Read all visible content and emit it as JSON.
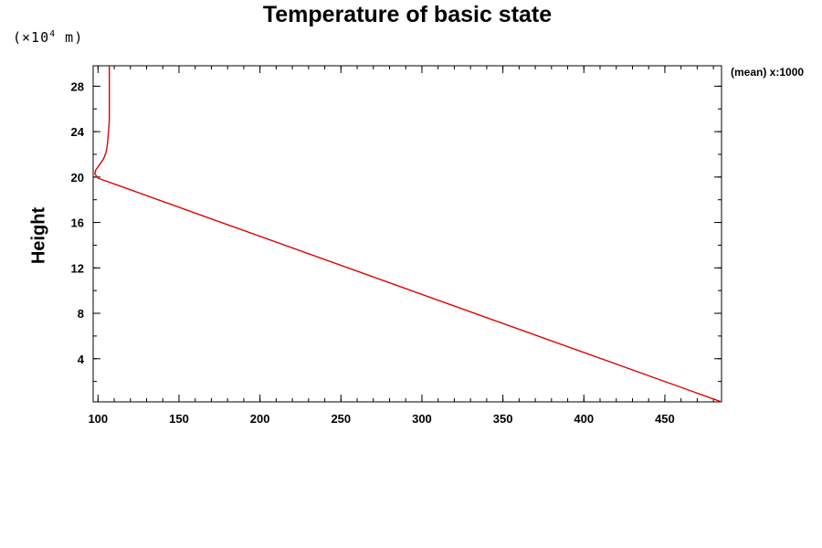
{
  "chart_data": {
    "type": "line",
    "title": "Temperature of basic state",
    "ylabel": "Height",
    "xlabel": "",
    "y_unit_prefix": "(×10",
    "y_unit_exponent": "4",
    "y_unit_suffix": " m)",
    "annotation": "(mean) x:1000",
    "xlim": [
      97,
      485
    ],
    "ylim": [
      0.2,
      29.8
    ],
    "xticks": [
      100,
      150,
      200,
      250,
      300,
      350,
      400,
      450
    ],
    "yticks": [
      4,
      8,
      12,
      16,
      20,
      24,
      28
    ],
    "x_minor_step": 10,
    "y_minor_step": 2,
    "grid": false,
    "line_color": "#e00000",
    "series": [
      {
        "x": [
          485,
          100,
          99,
          98,
          98.5,
          100,
          101,
          102,
          103,
          104,
          105,
          105.5,
          106,
          106.5,
          107,
          107,
          107
        ],
        "y": [
          0.2,
          19.9,
          20.1,
          20.3,
          20.6,
          20.9,
          21.1,
          21.3,
          21.5,
          21.8,
          22.2,
          22.6,
          23.2,
          24,
          25,
          27,
          29.8
        ]
      }
    ]
  }
}
